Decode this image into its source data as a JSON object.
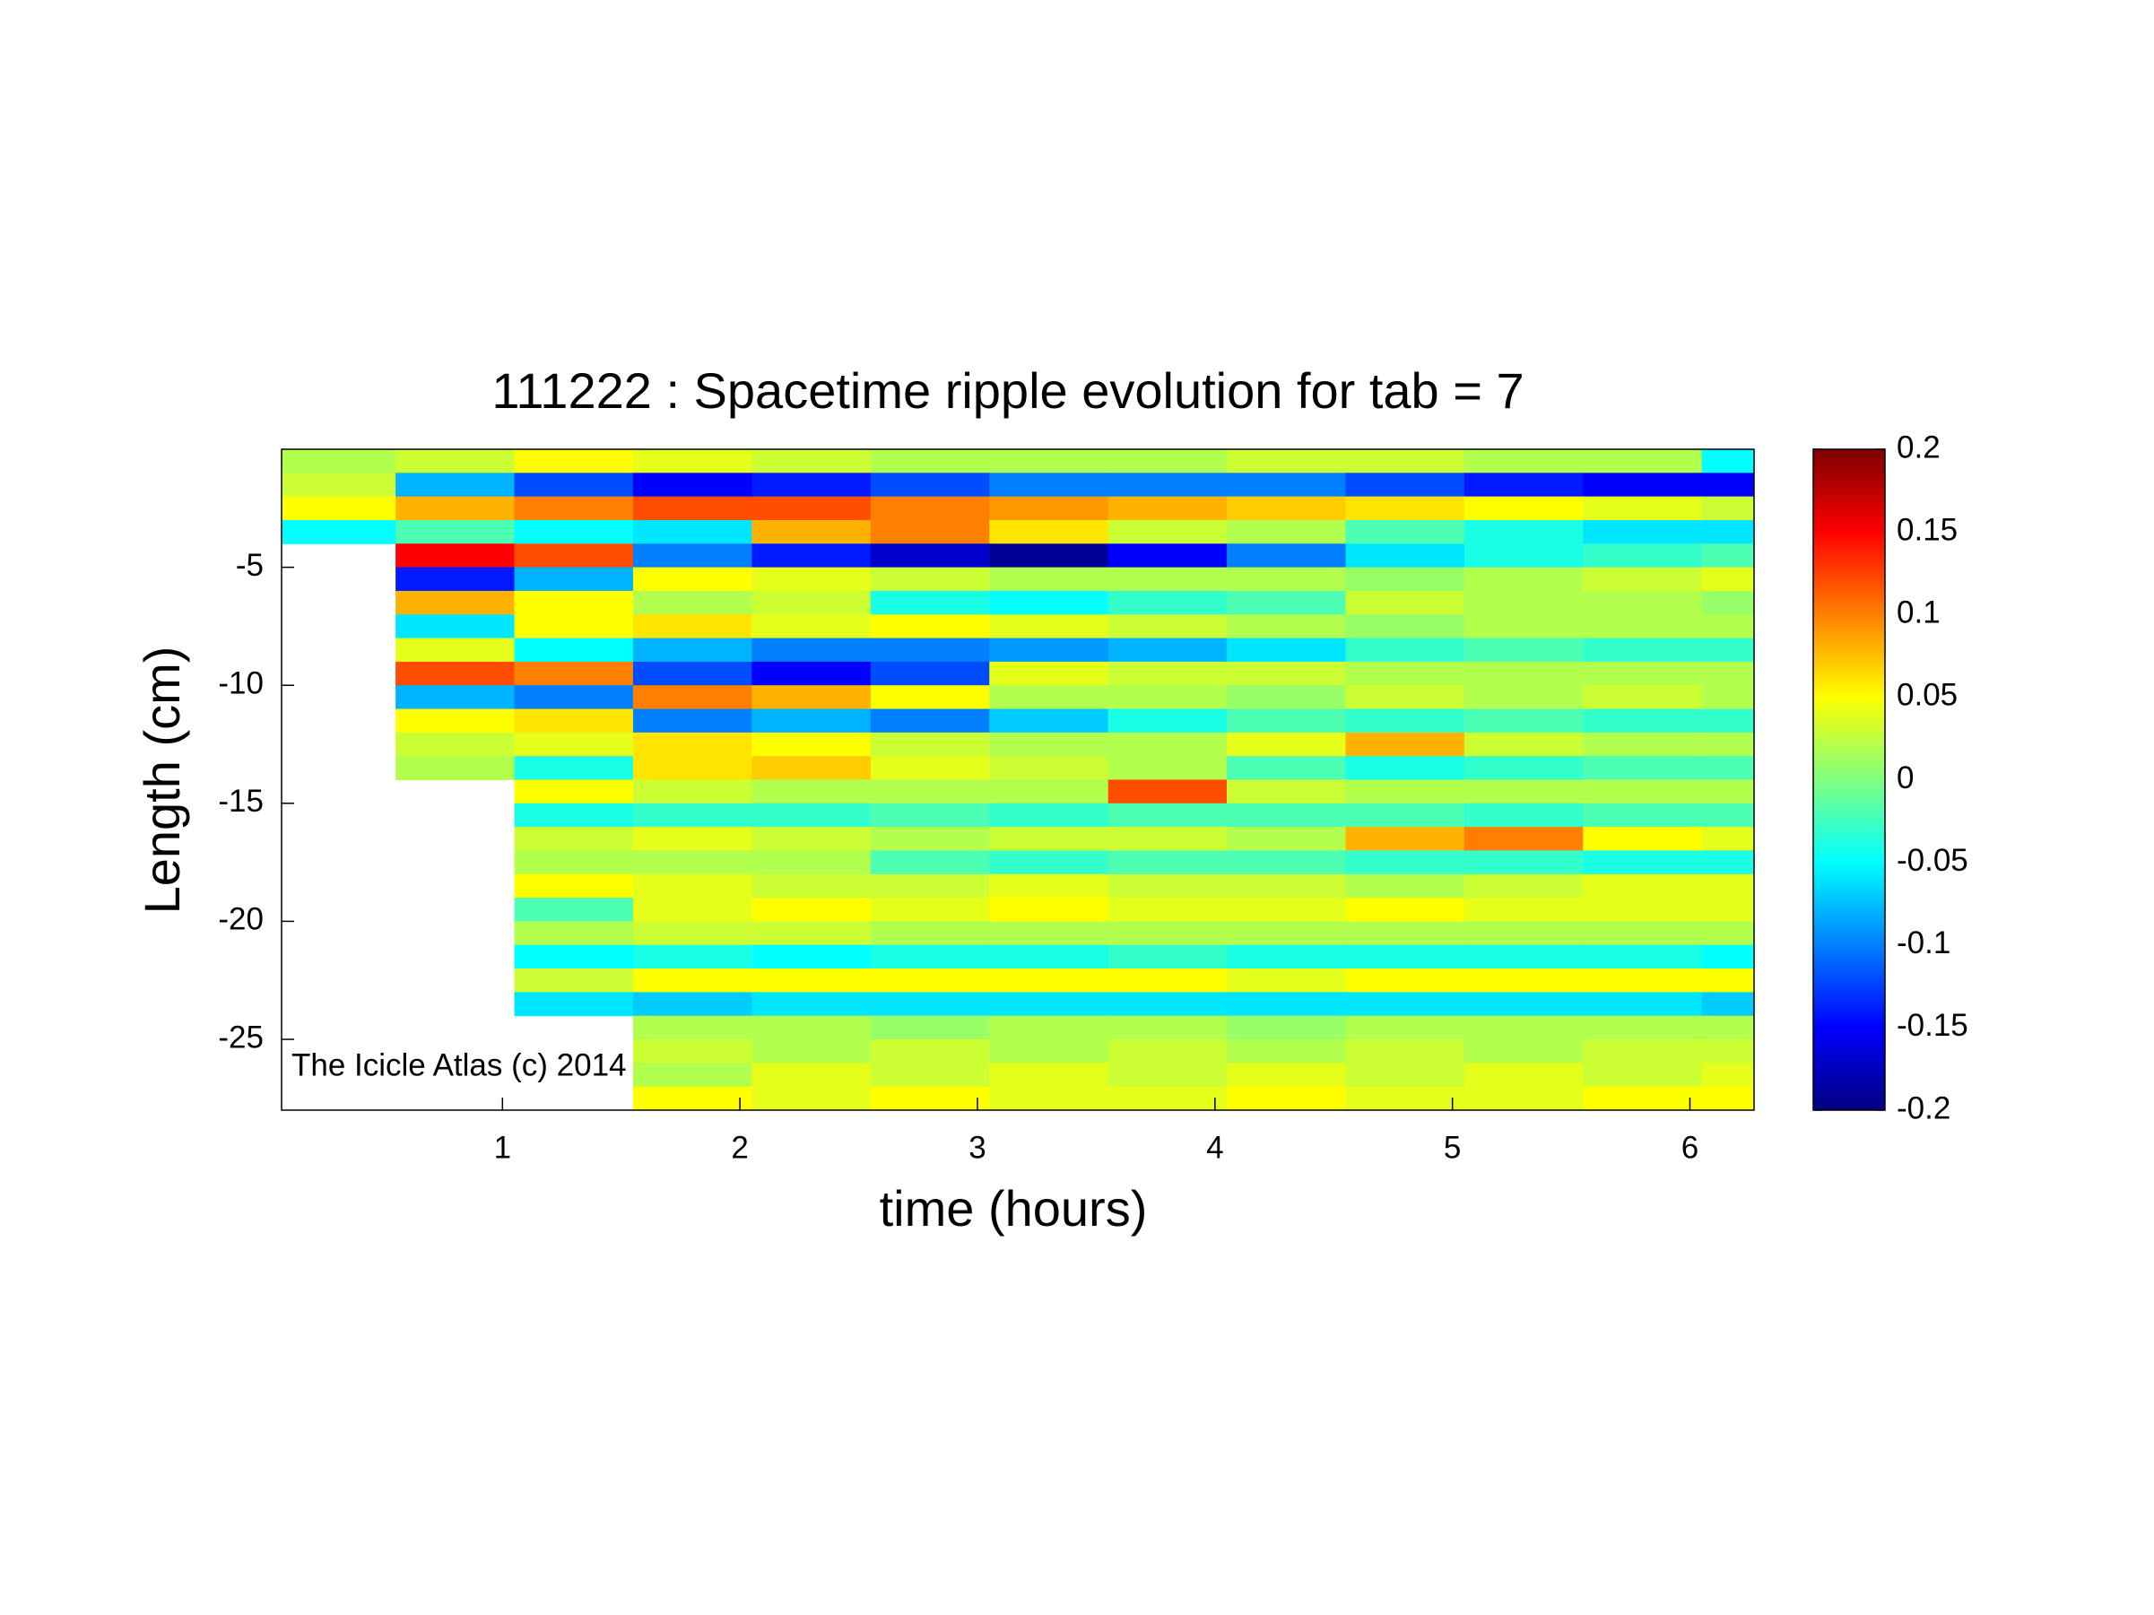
{
  "chart_data": {
    "type": "heatmap",
    "title": "111222 : Spacetime ripple evolution for tab = 7",
    "xlabel": "time (hours)",
    "ylabel": "Length (cm)",
    "annotation": "The Icicle Atlas (c) 2014",
    "colormap": "jet",
    "xlim": [
      0.07,
      6.27
    ],
    "ylim": [
      -28,
      0
    ],
    "xticks": [
      1,
      2,
      3,
      4,
      5,
      6
    ],
    "yticks": [
      -25,
      -20,
      -15,
      -10,
      -5
    ],
    "clim": [
      -0.2,
      0.2
    ],
    "cticks": [
      0.2,
      0.15,
      0.1,
      0.05,
      0,
      -0.05,
      -0.1,
      -0.15,
      -0.2
    ],
    "x": [
      0.3,
      0.8,
      1.3,
      1.8,
      2.3,
      2.8,
      3.3,
      3.8,
      4.3,
      4.8,
      5.3,
      5.8,
      6.3
    ],
    "y": [
      -0.5,
      -1.5,
      -2.5,
      -3.5,
      -4.5,
      -5.5,
      -6.5,
      -7.5,
      -8.5,
      -9.5,
      -10.5,
      -11.5,
      -12.5,
      -13.5,
      -14.5,
      -15.5,
      -16.5,
      -17.5,
      -18.5,
      -19.5,
      -20.5,
      -21.5,
      -22.5,
      -23.5,
      -24.5,
      -25.5,
      -26.5,
      -27.5
    ],
    "z": [
      [
        0.02,
        0.03,
        0.05,
        0.04,
        0.03,
        0.02,
        0.02,
        0.02,
        0.03,
        0.03,
        0.02,
        0.02,
        -0.05
      ],
      [
        0.03,
        -0.08,
        -0.12,
        -0.15,
        -0.14,
        -0.12,
        -0.1,
        -0.1,
        -0.1,
        -0.12,
        -0.14,
        -0.15,
        -0.15
      ],
      [
        0.05,
        0.08,
        0.1,
        0.12,
        0.12,
        0.1,
        0.09,
        0.08,
        0.07,
        0.06,
        0.05,
        0.04,
        0.03
      ],
      [
        -0.05,
        -0.02,
        -0.05,
        -0.06,
        0.08,
        0.1,
        0.06,
        0.03,
        0.02,
        -0.02,
        -0.04,
        -0.06,
        -0.06
      ],
      [
        null,
        0.15,
        0.12,
        -0.1,
        -0.14,
        -0.17,
        -0.19,
        -0.15,
        -0.1,
        -0.06,
        -0.04,
        -0.03,
        -0.02
      ],
      [
        null,
        -0.14,
        -0.08,
        0.05,
        0.04,
        0.03,
        0.02,
        0.02,
        0.02,
        0.01,
        0.02,
        0.03,
        0.04
      ],
      [
        null,
        0.08,
        0.05,
        0.02,
        0.03,
        -0.04,
        -0.05,
        -0.03,
        -0.02,
        0.03,
        0.02,
        0.02,
        0.01
      ],
      [
        null,
        -0.06,
        0.05,
        0.06,
        0.04,
        0.05,
        0.04,
        0.03,
        0.02,
        0.01,
        0.02,
        0.02,
        0.02
      ],
      [
        null,
        0.04,
        -0.05,
        -0.08,
        -0.1,
        -0.1,
        -0.09,
        -0.08,
        -0.06,
        -0.03,
        -0.02,
        -0.03,
        -0.03
      ],
      [
        null,
        0.12,
        0.1,
        -0.12,
        -0.15,
        -0.12,
        0.04,
        0.03,
        0.03,
        0.02,
        0.02,
        0.02,
        0.02
      ],
      [
        null,
        -0.08,
        -0.1,
        0.1,
        0.08,
        0.05,
        0.02,
        0.02,
        0.01,
        0.03,
        0.02,
        0.03,
        0.02
      ],
      [
        null,
        0.05,
        0.06,
        -0.1,
        -0.08,
        -0.1,
        -0.07,
        -0.04,
        -0.02,
        -0.03,
        -0.02,
        -0.03,
        -0.03
      ],
      [
        null,
        0.03,
        0.04,
        0.06,
        0.05,
        0.03,
        0.02,
        0.02,
        0.04,
        0.08,
        0.03,
        0.02,
        0.02
      ],
      [
        null,
        0.02,
        -0.04,
        0.06,
        0.07,
        0.04,
        0.03,
        0.02,
        -0.02,
        -0.04,
        -0.03,
        -0.02,
        -0.02
      ],
      [
        null,
        null,
        0.05,
        0.03,
        0.02,
        0.02,
        0.02,
        0.12,
        0.03,
        0.02,
        0.02,
        0.02,
        0.02
      ],
      [
        null,
        null,
        -0.04,
        -0.03,
        -0.03,
        -0.02,
        -0.03,
        -0.02,
        -0.02,
        -0.02,
        -0.03,
        -0.02,
        -0.02
      ],
      [
        null,
        null,
        0.03,
        0.04,
        0.03,
        0.02,
        0.03,
        0.03,
        0.02,
        0.08,
        0.1,
        0.05,
        0.04
      ],
      [
        null,
        null,
        0.02,
        0.02,
        0.02,
        -0.02,
        -0.03,
        -0.02,
        -0.02,
        -0.03,
        -0.03,
        -0.04,
        -0.04
      ],
      [
        null,
        null,
        0.05,
        0.04,
        0.03,
        0.03,
        0.04,
        0.03,
        0.03,
        0.02,
        0.03,
        0.04,
        0.04
      ],
      [
        null,
        null,
        -0.02,
        0.04,
        0.05,
        0.04,
        0.05,
        0.04,
        0.04,
        0.05,
        0.04,
        0.04,
        0.04
      ],
      [
        null,
        null,
        0.02,
        0.03,
        0.03,
        0.02,
        0.02,
        0.02,
        0.02,
        0.02,
        0.02,
        0.02,
        0.02
      ],
      [
        null,
        null,
        -0.05,
        -0.04,
        -0.05,
        -0.04,
        -0.04,
        -0.03,
        -0.04,
        -0.04,
        -0.04,
        -0.04,
        -0.05
      ],
      [
        null,
        null,
        0.03,
        0.05,
        0.05,
        0.05,
        0.05,
        0.05,
        0.04,
        0.05,
        0.05,
        0.05,
        0.05
      ],
      [
        null,
        null,
        -0.06,
        -0.07,
        -0.06,
        -0.06,
        -0.06,
        -0.06,
        -0.06,
        -0.06,
        -0.06,
        -0.06,
        -0.07
      ],
      [
        null,
        null,
        null,
        0.02,
        0.02,
        0.01,
        0.02,
        0.02,
        0.01,
        0.02,
        0.02,
        0.02,
        0.02
      ],
      [
        null,
        null,
        null,
        0.03,
        0.02,
        0.03,
        0.02,
        0.03,
        0.02,
        0.03,
        0.02,
        0.03,
        0.03
      ],
      [
        null,
        null,
        null,
        0.02,
        0.04,
        0.03,
        0.04,
        0.03,
        0.04,
        0.03,
        0.04,
        0.03,
        0.04
      ],
      [
        null,
        null,
        null,
        0.05,
        0.04,
        0.05,
        0.04,
        0.04,
        0.05,
        0.04,
        0.04,
        0.05,
        0.05
      ]
    ]
  }
}
